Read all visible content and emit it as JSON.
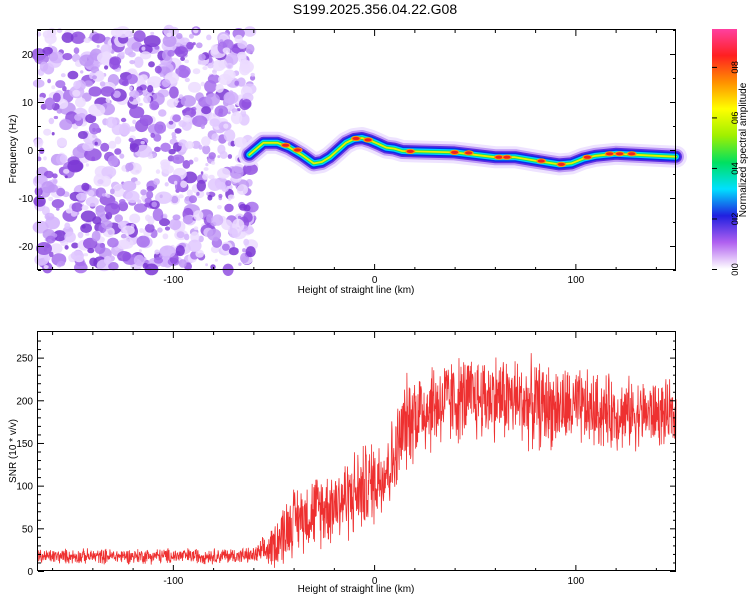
{
  "title": "S199.2025.356.04.22.G08",
  "chart_data": [
    {
      "type": "heatmap",
      "name": "spectrogram",
      "xlabel": "Height of straight line (km)",
      "ylabel": "Frequency (Hz)",
      "xlim": [
        -167,
        150
      ],
      "ylim": [
        -25,
        25
      ],
      "x_ticks": [
        -100,
        0,
        100
      ],
      "y_ticks": [
        -20,
        -10,
        0,
        10,
        20
      ],
      "colorbar": {
        "label": "Normalized spectral amplitude",
        "range": [
          0,
          0.95
        ],
        "ticks": [
          0.0,
          0.2,
          0.4,
          0.6,
          0.8
        ],
        "colors": [
          "#ffffff",
          "#b060f0",
          "#2020e0",
          "#00e0ff",
          "#00e060",
          "#a0f000",
          "#ffff00",
          "#ff9000",
          "#ff2020",
          "#ff40a0"
        ]
      },
      "noise_region_x": [
        -167,
        -60
      ],
      "ridge": {
        "x": [
          -62,
          -55,
          -48,
          -42,
          -36,
          -30,
          -26,
          -22,
          -18,
          -14,
          -10,
          -6,
          -2,
          2,
          6,
          10,
          14,
          20,
          30,
          40,
          50,
          60,
          70,
          80,
          86,
          92,
          98,
          104,
          110,
          120,
          130,
          140,
          150
        ],
        "freq": [
          -1.0,
          1.5,
          1.5,
          0.5,
          -1.0,
          -2.8,
          -2.5,
          -1.5,
          0.0,
          1.5,
          2.3,
          2.5,
          2.0,
          1.3,
          0.5,
          0.3,
          -0.2,
          -0.3,
          -0.4,
          -0.5,
          -1.0,
          -1.5,
          -1.5,
          -2.2,
          -2.6,
          -3.0,
          -2.8,
          -1.8,
          -1.2,
          -0.8,
          -1.0,
          -1.2,
          -1.4
        ]
      },
      "peaks": [
        {
          "x": -44,
          "freq": 1.0
        },
        {
          "x": -38,
          "freq": 0.0
        },
        {
          "x": -9,
          "freq": 2.4
        },
        {
          "x": -3,
          "freq": 2.1
        },
        {
          "x": 18,
          "freq": -0.3
        },
        {
          "x": 40,
          "freq": -0.5
        },
        {
          "x": 47,
          "freq": -0.6
        },
        {
          "x": 62,
          "freq": -1.5
        },
        {
          "x": 66,
          "freq": -1.5
        },
        {
          "x": 83,
          "freq": -2.3
        },
        {
          "x": 93,
          "freq": -3.0
        },
        {
          "x": 106,
          "freq": -1.5
        },
        {
          "x": 117,
          "freq": -0.8
        },
        {
          "x": 122,
          "freq": -0.8
        },
        {
          "x": 128,
          "freq": -0.8
        }
      ]
    },
    {
      "type": "line",
      "name": "snr",
      "xlabel": "Height of straight line (km)",
      "ylabel": "SNR (10 * v/v)",
      "xlim": [
        -167,
        150
      ],
      "ylim": [
        0,
        280
      ],
      "x_ticks": [
        -100,
        0,
        100
      ],
      "y_ticks": [
        0,
        50,
        100,
        150,
        200,
        250
      ],
      "color": "#ee3030",
      "envelope": {
        "x": [
          -167,
          -60,
          -52,
          -45,
          -40,
          -30,
          -20,
          -10,
          0,
          10,
          15,
          20,
          30,
          40,
          60,
          80,
          100,
          120,
          140,
          150
        ],
        "mean": [
          17,
          18,
          25,
          45,
          60,
          70,
          80,
          90,
          105,
          130,
          170,
          185,
          195,
          200,
          205,
          195,
          190,
          185,
          185,
          180
        ],
        "spread": [
          10,
          11,
          25,
          45,
          45,
          50,
          55,
          60,
          60,
          60,
          65,
          65,
          65,
          60,
          60,
          60,
          55,
          50,
          45,
          45
        ]
      }
    }
  ]
}
